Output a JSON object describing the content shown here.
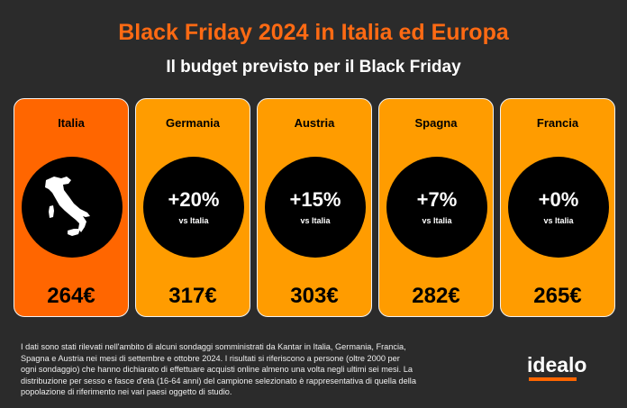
{
  "title": "Black Friday 2024 in Italia ed Europa",
  "subtitle": "Il budget previsto per il Black Friday",
  "colors": {
    "background": "#2b2b2b",
    "title": "#ff6a13",
    "highlight": "#ff6600",
    "card": "#ff9c00"
  },
  "cards": [
    {
      "country": "Italia",
      "icon": "italy-map-icon",
      "price": "264€"
    },
    {
      "country": "Germania",
      "change": "+20%",
      "vs": "vs Italia",
      "price": "317€"
    },
    {
      "country": "Austria",
      "change": "+15%",
      "vs": "vs Italia",
      "price": "303€"
    },
    {
      "country": "Spagna",
      "change": "+7%",
      "vs": "vs Italia",
      "price": "282€"
    },
    {
      "country": "Francia",
      "change": "+0%",
      "vs": "vs Italia",
      "price": "265€"
    }
  ],
  "note": "I dati sono stati rilevati nell'ambito di alcuni sondaggi somministrati da Kantar in Italia, Germania, Francia, Spagna e Austria nei mesi di settembre e ottobre 2024. I risultati si riferiscono a persone (oltre 2000 per ogni sondaggio) che hanno dichiarato di effettuare acquisti online almeno una volta negli ultimi sei mesi. La distribuzione per sesso e fasce d'età (16-64 anni) del campione selezionato è rappresentativa di quella della popolazione di riferimento nei vari paesi oggetto di studio.",
  "logo": "idealo"
}
